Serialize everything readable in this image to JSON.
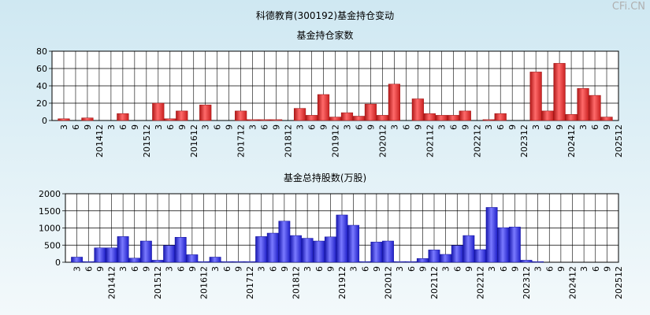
{
  "header": {
    "title": "科德教育(300192)基金持仓变动",
    "watermark": "CFi.CN"
  },
  "colors": {
    "red_bar": "#e02b2b",
    "blue_bar": "#2b2be0",
    "grid": "#000000",
    "plot_bg": "#ffffff"
  },
  "chart_data": [
    {
      "type": "bar",
      "title": "基金持仓家数",
      "xlabel": "",
      "ylabel": "",
      "ylim": [
        0,
        80
      ],
      "yticks": [
        0,
        20,
        40,
        60,
        80
      ],
      "grid": true,
      "categories": [
        "3",
        "6",
        "9",
        "201412",
        "3",
        "6",
        "9",
        "201512",
        "3",
        "6",
        "9",
        "201612",
        "3",
        "6",
        "9",
        "201712",
        "3",
        "6",
        "9",
        "201812",
        "3",
        "6",
        "9",
        "201912",
        "3",
        "6",
        "9",
        "202012",
        "3",
        "6",
        "9",
        "202112",
        "3",
        "6",
        "9",
        "202212",
        "3",
        "6",
        "9",
        "202312",
        "3",
        "6",
        "9",
        "202412",
        "3",
        "6",
        "9",
        "202512"
      ],
      "values": [
        2,
        0,
        3,
        0,
        0,
        8,
        0,
        0,
        20,
        2,
        11,
        0,
        18,
        0,
        0,
        11,
        1,
        1,
        1,
        0,
        14,
        6,
        30,
        4,
        9,
        5,
        19,
        6,
        42,
        0,
        25,
        8,
        6,
        6,
        11,
        0,
        1,
        8,
        0,
        0,
        56,
        11,
        66,
        7,
        37,
        29,
        4,
        0
      ]
    },
    {
      "type": "bar",
      "title": "基金总持股数(万股)",
      "xlabel": "",
      "ylabel": "",
      "ylim": [
        0,
        2000
      ],
      "yticks": [
        0,
        500,
        1000,
        1500,
        2000
      ],
      "grid": true,
      "categories": [
        "3",
        "6",
        "9",
        "201412",
        "3",
        "6",
        "9",
        "201512",
        "3",
        "6",
        "9",
        "201612",
        "3",
        "6",
        "9",
        "201712",
        "3",
        "6",
        "9",
        "201812",
        "3",
        "6",
        "9",
        "201912",
        "3",
        "6",
        "9",
        "202012",
        "3",
        "6",
        "9",
        "202112",
        "3",
        "6",
        "9",
        "202212",
        "3",
        "6",
        "9",
        "202312",
        "3",
        "6",
        "9",
        "202412",
        "3",
        "6",
        "9",
        "202512"
      ],
      "values": [
        150,
        20,
        420,
        420,
        750,
        120,
        620,
        60,
        490,
        730,
        220,
        20,
        150,
        20,
        20,
        20,
        750,
        850,
        1200,
        780,
        700,
        620,
        740,
        1380,
        1080,
        20,
        590,
        620,
        20,
        20,
        110,
        360,
        230,
        490,
        780,
        370,
        1600,
        1010,
        1030,
        60,
        20,
        0,
        0,
        0,
        0,
        0,
        0,
        0
      ]
    }
  ]
}
